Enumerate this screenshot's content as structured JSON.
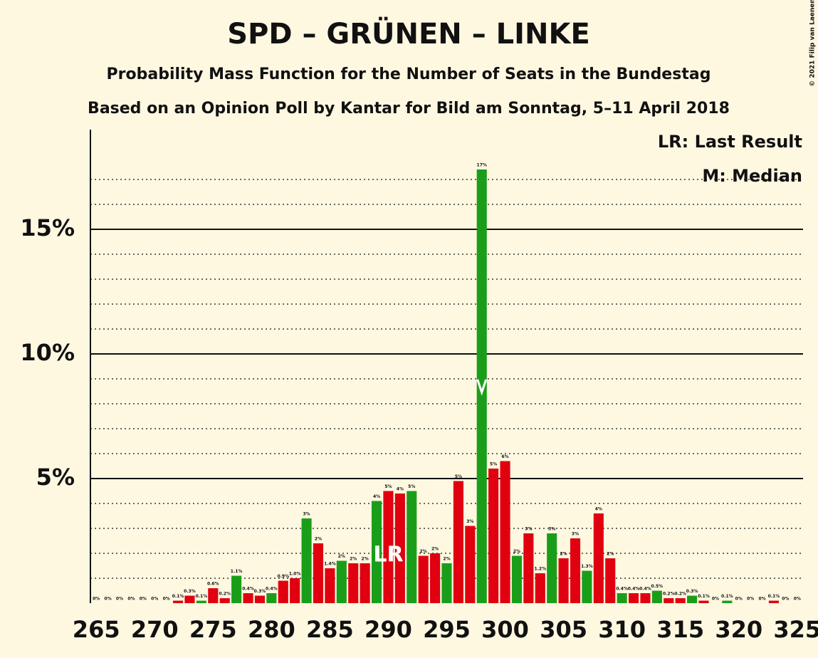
{
  "chart_data": {
    "type": "bar",
    "title": "SPD – GRÜNEN – LINKE",
    "subtitle": "Probability Mass Function for the Number of Seats in the Bundestag",
    "subtitle2": "Based on an Opinion Poll by Kantar for Bild am Sonntag, 5–11 April 2018",
    "copyright": "© 2021 Filip van Laenen",
    "legend": [
      "LR: Last Result",
      "M: Median"
    ],
    "x": [
      265,
      266,
      267,
      268,
      269,
      270,
      271,
      272,
      273,
      274,
      275,
      276,
      277,
      278,
      279,
      280,
      281,
      282,
      283,
      284,
      285,
      286,
      287,
      288,
      289,
      290,
      291,
      292,
      293,
      294,
      295,
      296,
      297,
      298,
      299,
      300,
      301,
      302,
      303,
      304,
      305,
      306,
      307,
      308,
      309,
      310,
      311,
      312,
      313,
      314,
      315,
      316,
      317,
      318,
      319,
      320,
      321,
      322,
      323,
      324,
      325
    ],
    "values": [
      0,
      0,
      0,
      0,
      0,
      0,
      0,
      0.1,
      0.3,
      0.1,
      0.6,
      0.2,
      1.1,
      0.4,
      0.3,
      0.4,
      0.9,
      1.0,
      3.4,
      2.4,
      1.4,
      1.7,
      1.6,
      1.6,
      4.1,
      4.5,
      4.4,
      4.5,
      1.9,
      2.0,
      1.6,
      4.9,
      3.1,
      17.4,
      5.4,
      5.7,
      1.9,
      2.8,
      1.2,
      2.8,
      1.8,
      2.6,
      1.3,
      3.6,
      1.8,
      0.4,
      0.4,
      0.4,
      0.5,
      0.2,
      0.2,
      0.3,
      0.1,
      0,
      0.1,
      0,
      0,
      0,
      0.1,
      0,
      0
    ],
    "value_labels": [
      "0%",
      "0%",
      "0%",
      "0%",
      "0%",
      "0%",
      "0%",
      "0.1%",
      "0.3%",
      "0.1%",
      "0.6%",
      "0.2%",
      "1.1%",
      "0.4%",
      "0.3%",
      "0.4%",
      "0.9%",
      "1.0%",
      "3%",
      "2%",
      "1.4%",
      "2%",
      "2%",
      "2%",
      "4%",
      "5%",
      "4%",
      "5%",
      "2%",
      "2%",
      "2%",
      "5%",
      "3%",
      "17%",
      "5%",
      "6%",
      "2%",
      "3%",
      "1.2%",
      "3%",
      "2%",
      "3%",
      "1.3%",
      "4%",
      "2%",
      "0.4%",
      "0.4%",
      "0.4%",
      "0.5%",
      "0.2%",
      "0.2%",
      "0.3%",
      "0.1%",
      "0%",
      "0.1%",
      "0%",
      "0%",
      "0%",
      "0.1%",
      "0%",
      "0%"
    ],
    "colors": [
      "#1a9e1a",
      "#e0000f",
      "#e0000f"
    ],
    "xlim": [
      264.5,
      325.5
    ],
    "xticks": [
      265,
      270,
      275,
      280,
      285,
      290,
      295,
      300,
      305,
      310,
      315,
      320,
      325
    ],
    "ylim": [
      0,
      19
    ],
    "yticks": [
      {
        "value": 5,
        "label": "5%"
      },
      {
        "value": 10,
        "label": "10%"
      },
      {
        "value": 15,
        "label": "15%"
      }
    ],
    "minor_yticks": [
      1,
      2,
      3,
      4,
      6,
      7,
      8,
      9,
      11,
      12,
      13,
      14,
      16,
      17
    ],
    "last_result": {
      "x": 290,
      "label": "LR"
    },
    "median": 298
  }
}
